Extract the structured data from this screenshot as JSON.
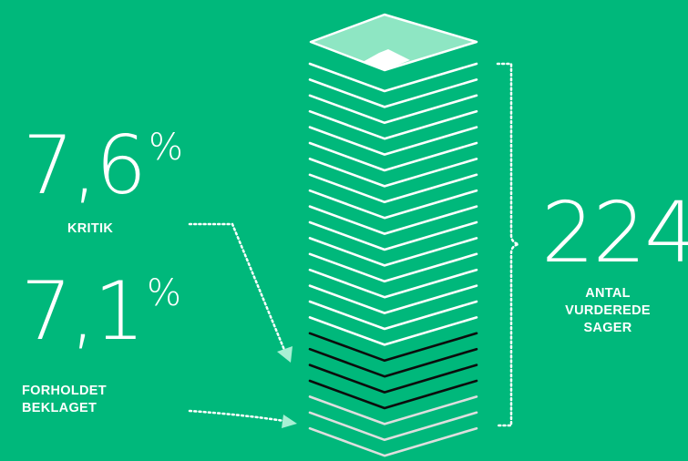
{
  "colors": {
    "background": "#00b87b",
    "white": "#ffffff",
    "mint": "#8ee6c3",
    "dark": "#0c0c0c",
    "grey": "#dedede"
  },
  "stats": {
    "kritik": {
      "value": "7,6",
      "unit": "%",
      "label": "KRITIK"
    },
    "beklaget": {
      "value": "7,1",
      "unit": "%",
      "label_lines": [
        "FORHOLDET",
        "BEKLAGET"
      ]
    },
    "total": {
      "value": "224",
      "label_lines": [
        "ANTAL",
        "VURDEREDE",
        "SAGER"
      ]
    }
  },
  "stack": {
    "total_cases": 224,
    "white_lines": 17,
    "dark_lines": 4,
    "grey_lines": 3
  }
}
